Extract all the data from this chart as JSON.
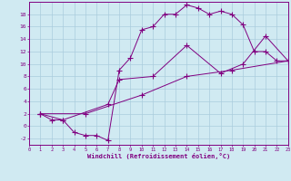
{
  "background_color": "#d0eaf2",
  "line_color": "#800080",
  "grid_color": "#aaccdd",
  "xlabel": "Windchill (Refroidissement éolien,°C)",
  "xlim": [
    0,
    23
  ],
  "ylim": [
    -3,
    20
  ],
  "xticks": [
    0,
    1,
    2,
    3,
    4,
    5,
    6,
    7,
    8,
    9,
    10,
    11,
    12,
    13,
    14,
    15,
    16,
    17,
    18,
    19,
    20,
    21,
    22,
    23
  ],
  "yticks": [
    -2,
    0,
    2,
    4,
    6,
    8,
    10,
    12,
    14,
    16,
    18
  ],
  "line1_x": [
    1,
    2,
    3,
    4,
    5,
    6,
    7,
    8,
    9,
    10,
    11,
    12,
    13,
    14,
    15,
    16,
    17,
    18,
    19,
    20,
    21,
    22,
    23
  ],
  "line1_y": [
    2,
    1,
    1,
    -1,
    -1.5,
    -1.5,
    -2.3,
    9,
    11,
    15.5,
    16,
    18,
    18,
    19.5,
    19,
    18,
    18.5,
    18,
    16.3,
    12,
    12,
    10.5,
    10.5
  ],
  "line2_x": [
    1,
    3,
    7,
    8,
    11,
    14,
    17,
    19,
    21,
    23
  ],
  "line2_y": [
    2,
    1,
    3.5,
    7.5,
    8,
    13,
    8.5,
    10,
    14.5,
    10.5
  ],
  "line3_x": [
    1,
    5,
    10,
    14,
    18,
    23
  ],
  "line3_y": [
    2,
    2,
    5,
    8,
    9,
    10.5
  ],
  "fig_width": 3.2,
  "fig_height": 2.0,
  "dpi": 100
}
